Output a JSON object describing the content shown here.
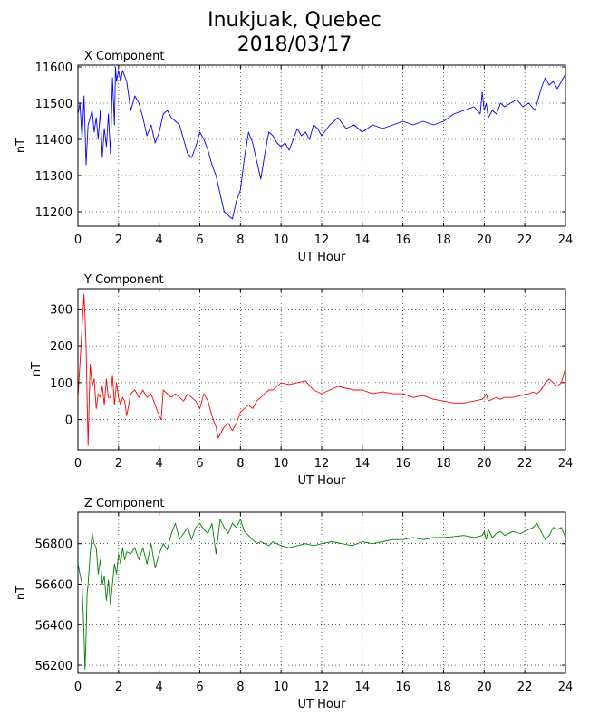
{
  "figure": {
    "title_line1": "Inukjuak, Quebec",
    "title_line2": "2018/03/17"
  },
  "chart_data": [
    {
      "type": "line",
      "title": "X Component",
      "xlabel": "UT Hour",
      "ylabel": "nT",
      "xlim": [
        0,
        24
      ],
      "ylim": [
        11160,
        11605
      ],
      "xticks": [
        0,
        2,
        4,
        6,
        8,
        10,
        12,
        14,
        16,
        18,
        20,
        22,
        24
      ],
      "yticks": [
        11200,
        11300,
        11400,
        11500,
        11600
      ],
      "grid": true,
      "color": "#0000ff",
      "series": [
        {
          "x": [
            0,
            0.1,
            0.2,
            0.3,
            0.4,
            0.5,
            0.6,
            0.7,
            0.8,
            0.9,
            1.0,
            1.1,
            1.2,
            1.3,
            1.4,
            1.5,
            1.6,
            1.7,
            1.8,
            1.85,
            1.9,
            2.0,
            2.1,
            2.2,
            2.4,
            2.6,
            2.8,
            3.0,
            3.2,
            3.4,
            3.6,
            3.8,
            4.0,
            4.2,
            4.4,
            4.6,
            4.8,
            5.0,
            5.2,
            5.4,
            5.6,
            5.8,
            6.0,
            6.2,
            6.4,
            6.6,
            6.8,
            7.0,
            7.2,
            7.4,
            7.6,
            7.8,
            8.0,
            8.2,
            8.4,
            8.6,
            8.8,
            9.0,
            9.2,
            9.4,
            9.6,
            9.8,
            10.0,
            10.2,
            10.4,
            10.6,
            10.8,
            11.0,
            11.2,
            11.4,
            11.6,
            11.8,
            12.0,
            12.4,
            12.8,
            13.2,
            13.6,
            14.0,
            14.5,
            15.0,
            15.5,
            16.0,
            16.5,
            17.0,
            17.5,
            18.0,
            18.5,
            19.0,
            19.5,
            19.8,
            19.9,
            20.0,
            20.1,
            20.2,
            20.4,
            20.6,
            20.8,
            21.0,
            21.3,
            21.6,
            21.9,
            22.2,
            22.5,
            22.8,
            23.0,
            23.2,
            23.4,
            23.6,
            23.8,
            24.0
          ],
          "values": [
            11470,
            11500,
            11400,
            11520,
            11330,
            11440,
            11460,
            11480,
            11420,
            11460,
            11400,
            11480,
            11350,
            11430,
            11380,
            11470,
            11360,
            11570,
            11440,
            11600,
            11560,
            11590,
            11560,
            11590,
            11560,
            11480,
            11520,
            11500,
            11460,
            11410,
            11440,
            11390,
            11420,
            11470,
            11480,
            11460,
            11450,
            11440,
            11400,
            11360,
            11350,
            11380,
            11420,
            11400,
            11370,
            11330,
            11300,
            11250,
            11200,
            11190,
            11180,
            11230,
            11260,
            11350,
            11420,
            11390,
            11340,
            11290,
            11360,
            11420,
            11410,
            11390,
            11380,
            11390,
            11370,
            11400,
            11430,
            11410,
            11420,
            11400,
            11440,
            11430,
            11410,
            11440,
            11460,
            11430,
            11440,
            11420,
            11440,
            11430,
            11440,
            11450,
            11440,
            11450,
            11440,
            11450,
            11470,
            11480,
            11490,
            11470,
            11530,
            11480,
            11500,
            11460,
            11480,
            11470,
            11500,
            11490,
            11500,
            11510,
            11490,
            11500,
            11480,
            11540,
            11570,
            11550,
            11560,
            11540,
            11560,
            11580
          ]
        }
      ]
    },
    {
      "type": "line",
      "title": "Y Component",
      "xlabel": "UT Hour",
      "ylabel": "nT",
      "xlim": [
        0,
        24
      ],
      "ylim": [
        -82,
        355
      ],
      "xticks": [
        0,
        2,
        4,
        6,
        8,
        10,
        12,
        14,
        16,
        18,
        20,
        22,
        24
      ],
      "yticks": [
        0,
        100,
        200,
        300
      ],
      "grid": true,
      "color": "#ff0000",
      "series": [
        {
          "x": [
            0,
            0.1,
            0.2,
            0.3,
            0.35,
            0.4,
            0.45,
            0.5,
            0.55,
            0.6,
            0.7,
            0.8,
            0.9,
            1.0,
            1.1,
            1.2,
            1.3,
            1.4,
            1.5,
            1.6,
            1.7,
            1.8,
            1.9,
            2.0,
            2.1,
            2.2,
            2.3,
            2.4,
            2.6,
            2.8,
            3.0,
            3.2,
            3.4,
            3.6,
            3.8,
            4.0,
            4.1,
            4.2,
            4.4,
            4.6,
            4.8,
            5.0,
            5.2,
            5.4,
            5.6,
            5.8,
            6.0,
            6.2,
            6.4,
            6.6,
            6.8,
            6.9,
            7.0,
            7.2,
            7.4,
            7.6,
            7.8,
            8.0,
            8.2,
            8.4,
            8.6,
            8.8,
            9.0,
            9.2,
            9.4,
            9.6,
            9.8,
            10.0,
            10.4,
            10.8,
            11.2,
            11.6,
            12.0,
            12.4,
            12.8,
            13.2,
            13.6,
            14.0,
            14.5,
            15.0,
            15.5,
            16.0,
            16.5,
            17.0,
            17.5,
            18.0,
            18.5,
            19.0,
            19.5,
            19.9,
            20.0,
            20.1,
            20.2,
            20.4,
            20.6,
            20.8,
            21.0,
            21.4,
            21.8,
            22.2,
            22.4,
            22.6,
            22.8,
            23.0,
            23.2,
            23.4,
            23.6,
            23.8,
            24.0
          ],
          "values": [
            60,
            150,
            250,
            340,
            280,
            200,
            60,
            -70,
            40,
            150,
            90,
            110,
            30,
            70,
            60,
            90,
            40,
            110,
            60,
            60,
            120,
            40,
            100,
            60,
            40,
            60,
            50,
            10,
            70,
            80,
            60,
            80,
            60,
            70,
            40,
            10,
            0,
            80,
            70,
            60,
            70,
            60,
            50,
            70,
            60,
            50,
            30,
            70,
            50,
            10,
            -20,
            -50,
            -40,
            -20,
            -10,
            -30,
            -10,
            20,
            30,
            40,
            30,
            50,
            60,
            70,
            80,
            80,
            90,
            100,
            95,
            100,
            105,
            80,
            70,
            80,
            90,
            85,
            80,
            80,
            70,
            75,
            70,
            70,
            60,
            65,
            55,
            50,
            45,
            45,
            50,
            55,
            60,
            70,
            50,
            55,
            60,
            55,
            60,
            60,
            65,
            70,
            75,
            70,
            80,
            100,
            110,
            100,
            90,
            100,
            140
          ]
        }
      ]
    },
    {
      "type": "line",
      "title": "Z Component",
      "xlabel": "UT Hour",
      "ylabel": "nT",
      "xlim": [
        0,
        24
      ],
      "ylim": [
        56160,
        56955
      ],
      "xticks": [
        0,
        2,
        4,
        6,
        8,
        10,
        12,
        14,
        16,
        18,
        20,
        22,
        24
      ],
      "yticks": [
        56200,
        56400,
        56600,
        56800
      ],
      "grid": true,
      "color": "#008000",
      "series": [
        {
          "x": [
            0,
            0.1,
            0.2,
            0.3,
            0.35,
            0.4,
            0.45,
            0.5,
            0.6,
            0.7,
            0.8,
            0.9,
            1.0,
            1.1,
            1.2,
            1.3,
            1.4,
            1.5,
            1.6,
            1.7,
            1.8,
            1.9,
            2.0,
            2.1,
            2.2,
            2.3,
            2.4,
            2.6,
            2.8,
            3.0,
            3.2,
            3.4,
            3.6,
            3.8,
            4.0,
            4.2,
            4.4,
            4.6,
            4.8,
            5.0,
            5.2,
            5.4,
            5.6,
            5.8,
            6.0,
            6.2,
            6.4,
            6.6,
            6.8,
            7.0,
            7.2,
            7.4,
            7.6,
            7.8,
            8.0,
            8.2,
            8.4,
            8.6,
            8.8,
            9.0,
            9.2,
            9.4,
            9.6,
            9.8,
            10.0,
            10.4,
            10.8,
            11.2,
            11.6,
            12.0,
            12.5,
            13.0,
            13.5,
            14.0,
            14.5,
            15.0,
            15.5,
            16.0,
            16.5,
            17.0,
            17.5,
            18.0,
            18.5,
            19.0,
            19.5,
            19.9,
            20.0,
            20.1,
            20.2,
            20.4,
            20.6,
            20.8,
            21.0,
            21.4,
            21.8,
            22.2,
            22.4,
            22.6,
            22.8,
            23.0,
            23.2,
            23.4,
            23.6,
            23.8,
            24.0
          ],
          "values": [
            56700,
            56650,
            56600,
            56350,
            56180,
            56350,
            56550,
            56600,
            56750,
            56850,
            56800,
            56780,
            56650,
            56720,
            56600,
            56640,
            56520,
            56620,
            56500,
            56600,
            56700,
            56650,
            56750,
            56700,
            56780,
            56720,
            56760,
            56750,
            56780,
            56720,
            56780,
            56700,
            56800,
            56680,
            56750,
            56800,
            56770,
            56850,
            56900,
            56820,
            56850,
            56880,
            56820,
            56880,
            56900,
            56870,
            56850,
            56900,
            56750,
            56920,
            56880,
            56850,
            56900,
            56880,
            56920,
            56860,
            56840,
            56820,
            56800,
            56810,
            56800,
            56790,
            56810,
            56800,
            56790,
            56780,
            56790,
            56800,
            56790,
            56800,
            56810,
            56800,
            56790,
            56810,
            56800,
            56810,
            56820,
            56820,
            56830,
            56820,
            56830,
            56830,
            56835,
            56840,
            56830,
            56840,
            56860,
            56820,
            56870,
            56830,
            56850,
            56860,
            56840,
            56860,
            56850,
            56870,
            56880,
            56900,
            56860,
            56820,
            56840,
            56880,
            56870,
            56880,
            56830
          ]
        }
      ]
    }
  ]
}
